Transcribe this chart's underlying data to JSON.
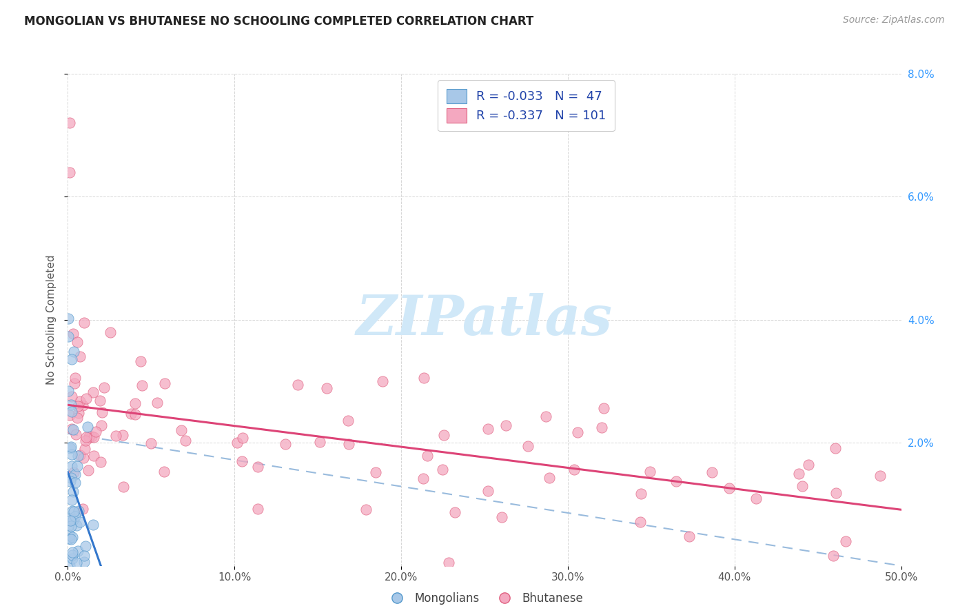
{
  "title": "MONGOLIAN VS BHUTANESE NO SCHOOLING COMPLETED CORRELATION CHART",
  "source": "Source: ZipAtlas.com",
  "ylabel": "No Schooling Completed",
  "xlim": [
    0,
    0.5
  ],
  "ylim": [
    0,
    0.08
  ],
  "xtick_vals": [
    0.0,
    0.1,
    0.2,
    0.3,
    0.4,
    0.5
  ],
  "xtick_labels": [
    "0.0%",
    "10.0%",
    "20.0%",
    "30.0%",
    "40.0%",
    "50.0%"
  ],
  "ytick_vals": [
    0.0,
    0.02,
    0.04,
    0.06,
    0.08
  ],
  "ytick_labels": [
    "",
    "2.0%",
    "4.0%",
    "6.0%",
    "8.0%"
  ],
  "mongolian_color": "#a8c8e8",
  "bhutanese_color": "#f4a8c0",
  "mongolian_edge": "#5599cc",
  "bhutanese_edge": "#e06080",
  "trend_mongolian_color": "#3377cc",
  "trend_bhutanese_color": "#dd4477",
  "trend_dashed_color": "#99bbdd",
  "background_color": "#ffffff",
  "watermark": "ZIPatlas",
  "watermark_color": "#d0e8f8",
  "legend_label1": "R = -0.033   N =  47",
  "legend_label2": "R = -0.337   N = 101",
  "legend_text_color": "#2244aa",
  "ytick_color": "#3399ff",
  "title_color": "#222222",
  "source_color": "#999999",
  "grid_color": "#cccccc"
}
